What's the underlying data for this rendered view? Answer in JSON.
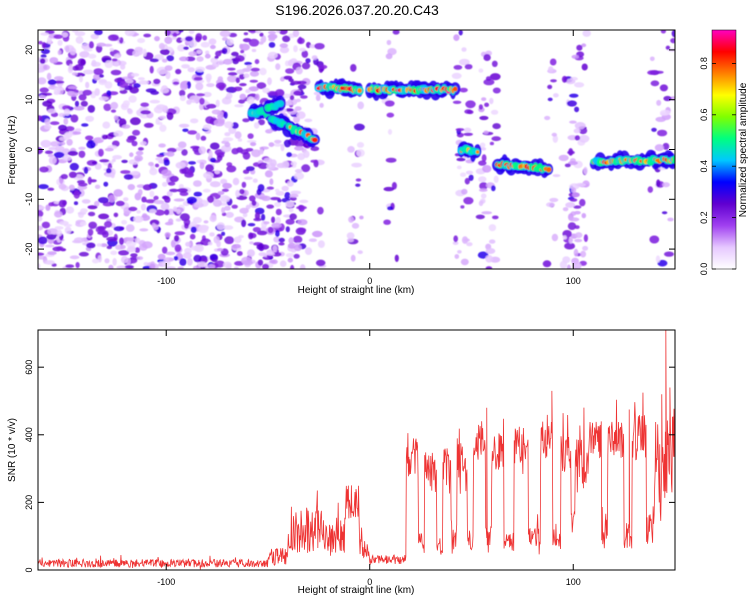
{
  "title": "S196.2026.037.20.20.C43",
  "chart_data": [
    {
      "type": "heatmap",
      "name": "spectrogram",
      "xlabel": "Height of straight line (km)",
      "ylabel": "Frequency (Hz)",
      "xlim": [
        -163,
        150
      ],
      "ylim": [
        -24,
        24
      ],
      "xticks": [
        -100,
        0,
        100
      ],
      "yticks": [
        -20,
        -10,
        0,
        10,
        20
      ],
      "colorbar": {
        "label": "Normalized spectral amplitude",
        "range": [
          0,
          0.93
        ],
        "ticks": [
          "0.0",
          "0.2",
          "0.4",
          "0.6",
          "0.8"
        ],
        "colors": [
          "#ffffff",
          "#e6c8ff",
          "#a040f0",
          "#6000d0",
          "#0000ff",
          "#00c8ff",
          "#00ff80",
          "#80ff00",
          "#ffff00",
          "#ff8000",
          "#ff0000",
          "#ff00c0"
        ]
      },
      "noise_regions": [
        {
          "x0": -163,
          "x1": -30,
          "density": 1.0
        },
        {
          "x0": -28,
          "x1": -23,
          "density": 0.5
        },
        {
          "x0": -10,
          "x1": -4,
          "density": 0.35
        },
        {
          "x0": 8,
          "x1": 14,
          "density": 0.3
        },
        {
          "x0": 42,
          "x1": 50,
          "density": 0.55
        },
        {
          "x0": 54,
          "x1": 63,
          "density": 0.6
        },
        {
          "x0": 87,
          "x1": 92,
          "density": 0.4
        },
        {
          "x0": 95,
          "x1": 107,
          "density": 0.7
        },
        {
          "x0": 137,
          "x1": 150,
          "density": 0.35
        }
      ],
      "tracks": [
        {
          "x0": -58,
          "x1": -50,
          "f0": 7.5,
          "f1": 7.5,
          "peak": 0.55
        },
        {
          "x0": -50,
          "x1": -44,
          "f0": 8.5,
          "f1": 9.0,
          "peak": 0.45
        },
        {
          "x0": -48,
          "x1": -40,
          "f0": 6.0,
          "f1": 4.5,
          "peak": 0.35
        },
        {
          "x0": -40,
          "x1": -27,
          "f0": 4.5,
          "f1": 2.0,
          "peak": 0.7
        },
        {
          "x0": -25,
          "x1": -5,
          "f0": 12.5,
          "f1": 12.0,
          "peak": 0.85
        },
        {
          "x0": 0,
          "x1": 42,
          "f0": 12.0,
          "f1": 12.0,
          "peak": 0.9
        },
        {
          "x0": 45,
          "x1": 53,
          "f0": 0.0,
          "f1": -0.5,
          "peak": 0.7
        },
        {
          "x0": 63,
          "x1": 88,
          "f0": -3.0,
          "f1": -4.0,
          "peak": 0.8
        },
        {
          "x0": 110,
          "x1": 150,
          "f0": -2.5,
          "f1": -2.0,
          "peak": 0.7
        }
      ]
    },
    {
      "type": "line",
      "name": "snr",
      "xlabel": "Height of straight line (km)",
      "ylabel": "SNR (10 * v/v)",
      "xlim": [
        -163,
        150
      ],
      "ylim": [
        0,
        710
      ],
      "xticks": [
        -100,
        0,
        100
      ],
      "yticks": [
        0,
        200,
        400,
        600
      ],
      "color": "#ee3333",
      "sample_spacing": 0.25,
      "segments": [
        {
          "x0": -163,
          "x1": -50,
          "base": 20,
          "noise": 12
        },
        {
          "x0": -50,
          "x1": -40,
          "base": 40,
          "noise": 25
        },
        {
          "x0": -40,
          "x1": -23,
          "base": 120,
          "noise": 70
        },
        {
          "x0": -23,
          "x1": -12,
          "base": 100,
          "noise": 60
        },
        {
          "x0": -12,
          "x1": -5,
          "base": 200,
          "noise": 55
        },
        {
          "x0": -5,
          "x1": 0,
          "base": 60,
          "noise": 30
        },
        {
          "x0": 0,
          "x1": 18,
          "base": 30,
          "noise": 15
        },
        {
          "x0": 18,
          "x1": 24,
          "base": 330,
          "noise": 60
        },
        {
          "x0": 24,
          "x1": 27,
          "base": 80,
          "noise": 30
        },
        {
          "x0": 27,
          "x1": 33,
          "base": 290,
          "noise": 60
        },
        {
          "x0": 33,
          "x1": 36,
          "base": 70,
          "noise": 30
        },
        {
          "x0": 36,
          "x1": 40,
          "base": 300,
          "noise": 60
        },
        {
          "x0": 40,
          "x1": 43,
          "base": 100,
          "noise": 40
        },
        {
          "x0": 43,
          "x1": 48,
          "base": 330,
          "noise": 60
        },
        {
          "x0": 48,
          "x1": 51,
          "base": 90,
          "noise": 30
        },
        {
          "x0": 51,
          "x1": 57,
          "base": 380,
          "noise": 60
        },
        {
          "x0": 57,
          "x1": 60,
          "base": 100,
          "noise": 35
        },
        {
          "x0": 60,
          "x1": 66,
          "base": 350,
          "noise": 55
        },
        {
          "x0": 66,
          "x1": 71,
          "base": 80,
          "noise": 30
        },
        {
          "x0": 71,
          "x1": 78,
          "base": 370,
          "noise": 55
        },
        {
          "x0": 78,
          "x1": 84,
          "base": 100,
          "noise": 35
        },
        {
          "x0": 84,
          "x1": 90,
          "base": 380,
          "noise": 60
        },
        {
          "x0": 90,
          "x1": 94,
          "base": 90,
          "noise": 30
        },
        {
          "x0": 94,
          "x1": 99,
          "base": 350,
          "noise": 60
        },
        {
          "x0": 99,
          "x1": 101,
          "base": 150,
          "noise": 50
        },
        {
          "x0": 101,
          "x1": 108,
          "base": 320,
          "noise": 70
        },
        {
          "x0": 108,
          "x1": 114,
          "base": 390,
          "noise": 60
        },
        {
          "x0": 114,
          "x1": 117,
          "base": 110,
          "noise": 40
        },
        {
          "x0": 117,
          "x1": 125,
          "base": 380,
          "noise": 60
        },
        {
          "x0": 125,
          "x1": 129,
          "base": 100,
          "noise": 40
        },
        {
          "x0": 129,
          "x1": 136,
          "base": 390,
          "noise": 70
        },
        {
          "x0": 136,
          "x1": 140,
          "base": 130,
          "noise": 60
        },
        {
          "x0": 140,
          "x1": 145,
          "base": 300,
          "noise": 160
        },
        {
          "x0": 145,
          "x1": 150,
          "base": 350,
          "noise": 140
        }
      ],
      "spikes": [
        {
          "x": 145.5,
          "y": 710
        },
        {
          "x": 143.5,
          "y": 520
        },
        {
          "x": 147.5,
          "y": 540
        },
        {
          "x": 89.5,
          "y": 530
        },
        {
          "x": 57.5,
          "y": 480
        },
        {
          "x": 127.5,
          "y": 475
        }
      ]
    }
  ]
}
